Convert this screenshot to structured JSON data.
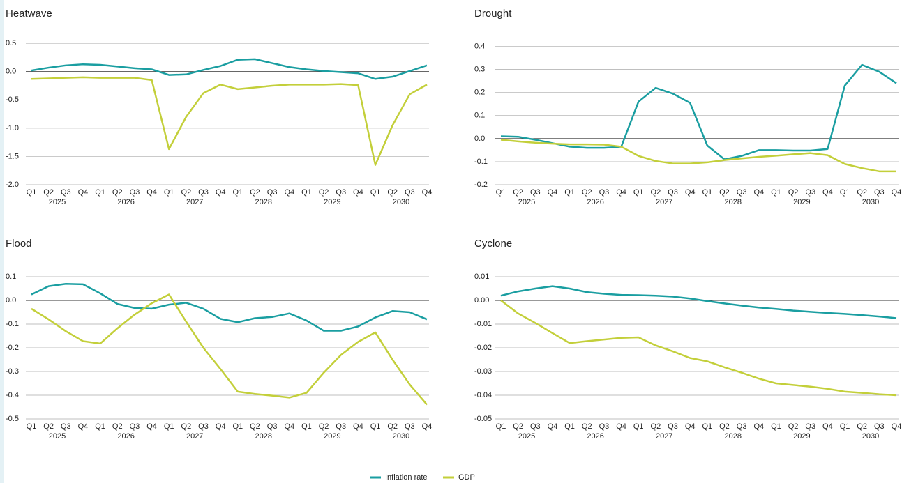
{
  "chart_data": [
    {
      "type": "line",
      "title": "Heatwave",
      "categories": [
        "Q1",
        "Q2",
        "Q3",
        "Q4",
        "Q1",
        "Q2",
        "Q3",
        "Q4",
        "Q1",
        "Q2",
        "Q3",
        "Q4",
        "Q1",
        "Q2",
        "Q3",
        "Q4",
        "Q1",
        "Q2",
        "Q3",
        "Q4",
        "Q1",
        "Q2",
        "Q3",
        "Q4"
      ],
      "groups": [
        "2025",
        "2026",
        "2027",
        "2028",
        "2029",
        "2030"
      ],
      "ylim": [
        -2.0,
        0.65
      ],
      "yticks": [
        {
          "value": -2.0,
          "label": "-2.0"
        },
        -1.5,
        {
          "value": -1.0,
          "label": "-1.0"
        },
        -0.5,
        {
          "value": 0.0,
          "label": "0.0"
        },
        0.5
      ],
      "grid": true,
      "series": [
        {
          "name": "Inflation rate",
          "color": "#1a9ea1",
          "values": [
            0.02,
            0.07,
            0.11,
            0.13,
            0.12,
            0.09,
            0.06,
            0.04,
            -0.06,
            -0.05,
            0.03,
            0.1,
            0.21,
            0.22,
            0.15,
            0.08,
            0.04,
            0.01,
            -0.01,
            -0.03,
            -0.13,
            -0.09,
            0.01,
            0.11
          ]
        },
        {
          "name": "GDP",
          "color": "#c3cf3a",
          "values": [
            -0.13,
            -0.12,
            -0.11,
            -0.1,
            -0.11,
            -0.11,
            -0.11,
            -0.15,
            -1.37,
            -0.8,
            -0.38,
            -0.23,
            -0.31,
            -0.28,
            -0.25,
            -0.23,
            -0.23,
            -0.23,
            -0.22,
            -0.24,
            -1.65,
            -0.95,
            -0.4,
            -0.23
          ]
        }
      ]
    },
    {
      "type": "line",
      "title": "Drought",
      "categories": [
        "Q1",
        "Q2",
        "Q3",
        "Q4",
        "Q1",
        "Q2",
        "Q3",
        "Q4",
        "Q1",
        "Q2",
        "Q3",
        "Q4",
        "Q1",
        "Q2",
        "Q3",
        "Q4",
        "Q1",
        "Q2",
        "Q3",
        "Q4",
        "Q1",
        "Q2",
        "Q3",
        "Q4"
      ],
      "groups": [
        "2025",
        "2026",
        "2027",
        "2028",
        "2029",
        "2030"
      ],
      "ylim": [
        -0.2,
        0.45
      ],
      "yticks": [
        -0.2,
        -0.1,
        {
          "value": 0.0,
          "label": "0.0"
        },
        0.1,
        0.2,
        0.3,
        0.4
      ],
      "grid": true,
      "series": [
        {
          "color": "#1a9ea1",
          "values": [
            0.01,
            0.008,
            -0.005,
            -0.02,
            -0.035,
            -0.04,
            -0.04,
            -0.035,
            0.16,
            0.22,
            0.195,
            0.155,
            -0.03,
            -0.09,
            -0.075,
            -0.05,
            -0.05,
            -0.052,
            -0.052,
            -0.045,
            0.23,
            0.32,
            0.29,
            0.24
          ]
        },
        {
          "color": "#c3cf3a",
          "values": [
            -0.005,
            -0.012,
            -0.018,
            -0.022,
            -0.025,
            -0.025,
            -0.026,
            -0.035,
            -0.075,
            -0.097,
            -0.108,
            -0.108,
            -0.103,
            -0.093,
            -0.086,
            -0.079,
            -0.074,
            -0.068,
            -0.063,
            -0.072,
            -0.11,
            -0.128,
            -0.142,
            -0.142
          ]
        }
      ]
    },
    {
      "type": "line",
      "title": "Flood",
      "categories": [
        "Q1",
        "Q2",
        "Q3",
        "Q4",
        "Q1",
        "Q2",
        "Q3",
        "Q4",
        "Q1",
        "Q2",
        "Q3",
        "Q4",
        "Q1",
        "Q2",
        "Q3",
        "Q4",
        "Q1",
        "Q2",
        "Q3",
        "Q4",
        "Q1",
        "Q2",
        "Q3",
        "Q4"
      ],
      "groups": [
        "2025",
        "2026",
        "2027",
        "2028",
        "2029",
        "2030"
      ],
      "ylim": [
        -0.5,
        0.15
      ],
      "yticks": [
        -0.5,
        -0.4,
        -0.3,
        -0.2,
        -0.1,
        {
          "value": 0.0,
          "label": "0.0"
        },
        0.1
      ],
      "grid": true,
      "series": [
        {
          "color": "#1a9ea1",
          "values": [
            0.025,
            0.06,
            0.07,
            0.068,
            0.03,
            -0.015,
            -0.032,
            -0.035,
            -0.018,
            -0.01,
            -0.035,
            -0.078,
            -0.092,
            -0.075,
            -0.07,
            -0.055,
            -0.085,
            -0.128,
            -0.128,
            -0.11,
            -0.072,
            -0.045,
            -0.05,
            -0.08
          ]
        },
        {
          "color": "#c3cf3a",
          "values": [
            -0.035,
            -0.08,
            -0.13,
            -0.172,
            -0.182,
            -0.118,
            -0.06,
            -0.012,
            0.025,
            -0.09,
            -0.2,
            -0.29,
            -0.385,
            -0.395,
            -0.402,
            -0.41,
            -0.39,
            -0.305,
            -0.23,
            -0.175,
            -0.135,
            -0.25,
            -0.355,
            -0.44
          ]
        }
      ]
    },
    {
      "type": "line",
      "title": "Cyclone",
      "categories": [
        "Q1",
        "Q2",
        "Q3",
        "Q4",
        "Q1",
        "Q2",
        "Q3",
        "Q4",
        "Q1",
        "Q2",
        "Q3",
        "Q4",
        "Q1",
        "Q2",
        "Q3",
        "Q4",
        "Q1",
        "Q2",
        "Q3",
        "Q4",
        "Q1",
        "Q2",
        "Q3",
        "Q4"
      ],
      "groups": [
        "2025",
        "2026",
        "2027",
        "2028",
        "2029",
        "2030"
      ],
      "ylim": [
        -0.05,
        0.015
      ],
      "yticks": [
        -0.05,
        -0.04,
        -0.03,
        -0.02,
        -0.01,
        {
          "value": 0.0,
          "label": "0.00"
        },
        0.01
      ],
      "grid": true,
      "series": [
        {
          "color": "#1a9ea1",
          "values": [
            0.002,
            0.0038,
            0.005,
            0.006,
            0.005,
            0.0035,
            0.0028,
            0.0023,
            0.0022,
            0.002,
            0.0016,
            0.0008,
            -0.0003,
            -0.0013,
            -0.0022,
            -0.003,
            -0.0036,
            -0.0043,
            -0.0048,
            -0.0053,
            -0.0057,
            -0.0062,
            -0.0068,
            -0.0075
          ]
        },
        {
          "color": "#c3cf3a",
          "values": [
            0,
            -0.0055,
            -0.0095,
            -0.0138,
            -0.018,
            -0.0172,
            -0.0165,
            -0.0158,
            -0.0156,
            -0.019,
            -0.0215,
            -0.0243,
            -0.0257,
            -0.0282,
            -0.0305,
            -0.033,
            -0.035,
            -0.0357,
            -0.0364,
            -0.0373,
            -0.0385,
            -0.039,
            -0.0396,
            -0.04
          ]
        }
      ]
    }
  ]
}
